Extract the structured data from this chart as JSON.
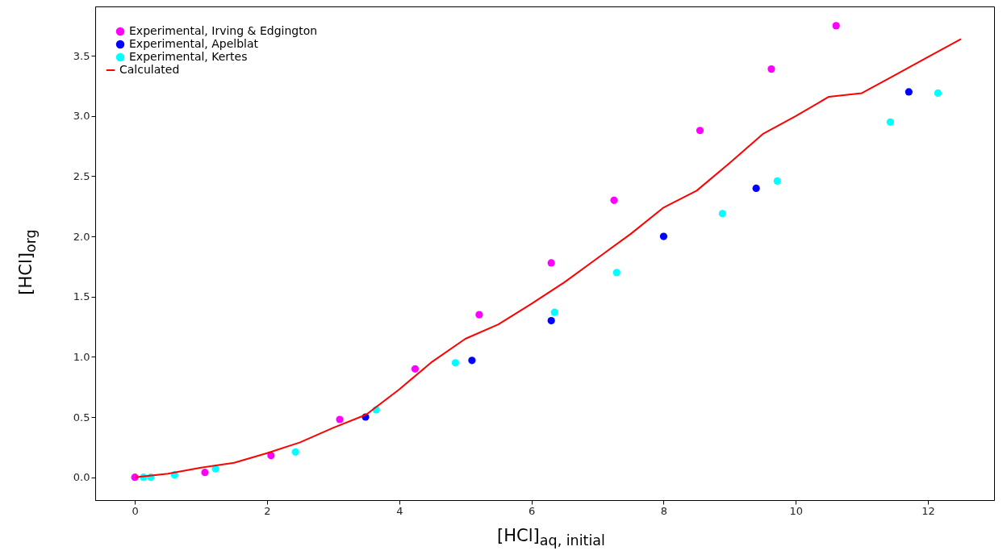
{
  "chart_data": {
    "type": "scatter",
    "xlabel": "[HCl]$_{aq, initial}$",
    "ylabel": "[HCl]$_{org}$",
    "xlim": [
      -0.6,
      13.0
    ],
    "ylim": [
      -0.19,
      3.91
    ],
    "xticks": [
      0,
      2,
      4,
      6,
      8,
      10,
      12
    ],
    "yticks": [
      {
        "value": 0,
        "label": "0.0"
      },
      0.5,
      {
        "value": 1,
        "label": "1.0"
      },
      1.5,
      {
        "value": 2,
        "label": "2.0"
      },
      2.5,
      {
        "value": 3,
        "label": "3.0"
      },
      3.5
    ],
    "grid": false,
    "legend": "top left",
    "marker": "circle",
    "series": [
      {
        "name": "Experimental, Irving & Edgington",
        "color": "#ff00ff",
        "x": [
          0,
          1.06,
          2.06,
          3.1,
          4.24,
          5.21,
          6.3,
          7.25,
          8.55,
          9.63,
          10.61
        ],
        "values": [
          0,
          0.04,
          0.18,
          0.48,
          0.9,
          1.35,
          1.78,
          2.3,
          2.88,
          3.39,
          3.75
        ]
      },
      {
        "name": "Experimental, Apelblat",
        "color": "#0000ff",
        "x": [
          3.49,
          5.1,
          6.3,
          8.0,
          9.4,
          11.71
        ],
        "values": [
          0.5,
          0.97,
          1.3,
          2.0,
          2.4,
          3.2
        ]
      },
      {
        "name": "Experimental, Kertes",
        "color": "#00ffff",
        "x": [
          0.13,
          0.24,
          0.6,
          1.22,
          2.43,
          3.65,
          4.85,
          6.35,
          7.29,
          8.89,
          9.72,
          11.43,
          12.15
        ],
        "values": [
          0,
          0,
          0.02,
          0.07,
          0.21,
          0.56,
          0.95,
          1.37,
          1.7,
          2.19,
          2.46,
          2.95,
          3.19
        ]
      },
      {
        "name": "Calculated",
        "type": "line",
        "color": "#ff0000",
        "line_style": "solid",
        "marker": "none",
        "x": [
          0,
          0.5,
          1.0,
          1.5,
          2.0,
          2.5,
          3.0,
          3.5,
          4.0,
          4.5,
          5.0,
          5.5,
          6.0,
          6.5,
          7.0,
          7.5,
          8.0,
          8.5,
          9.0,
          9.5,
          10.0,
          10.5,
          11.0,
          11.5,
          12.0,
          12.5
        ],
        "values": [
          0,
          0.03,
          0.08,
          0.12,
          0.2,
          0.29,
          0.41,
          0.52,
          0.73,
          0.96,
          1.15,
          1.27,
          1.44,
          1.62,
          1.82,
          2.02,
          2.24,
          2.38,
          2.61,
          2.85,
          3.0,
          3.16,
          3.19,
          3.34,
          3.49,
          3.64
        ]
      }
    ]
  }
}
